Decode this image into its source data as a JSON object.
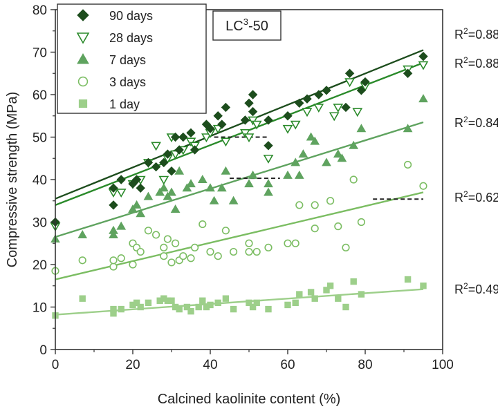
{
  "chart_data": {
    "type": "scatter",
    "xlabel": "Calcined kaolinite content (%)",
    "ylabel": "Compressive strength (MPa)",
    "xlim": [
      0,
      100
    ],
    "ylim": [
      0,
      80
    ],
    "xticks": [
      0,
      20,
      40,
      60,
      80,
      100
    ],
    "yticks": [
      0,
      10,
      20,
      30,
      40,
      50,
      60,
      70,
      80
    ],
    "annotation_box": {
      "main": "LC",
      "sup": "3",
      "rest": "-50"
    },
    "legend_position": "top-left",
    "series": [
      {
        "name": "90 days",
        "marker": "diamond-filled",
        "color": "#1d4d1d",
        "fit": {
          "x": [
            0,
            95
          ],
          "y": [
            35.5,
            70.5
          ]
        },
        "r2_label": "0.88",
        "points": [
          [
            0,
            30
          ],
          [
            15,
            38
          ],
          [
            15,
            34
          ],
          [
            17,
            40
          ],
          [
            20,
            39
          ],
          [
            21,
            40
          ],
          [
            22,
            38
          ],
          [
            24,
            44
          ],
          [
            26,
            43
          ],
          [
            28,
            44
          ],
          [
            29,
            46
          ],
          [
            30,
            42
          ],
          [
            31,
            50
          ],
          [
            32,
            47
          ],
          [
            33,
            50
          ],
          [
            35,
            51
          ],
          [
            36,
            47
          ],
          [
            39,
            53
          ],
          [
            40,
            52
          ],
          [
            42,
            55
          ],
          [
            43,
            53
          ],
          [
            44,
            57
          ],
          [
            49,
            54
          ],
          [
            50,
            58
          ],
          [
            51,
            60
          ],
          [
            51,
            56
          ],
          [
            55,
            48
          ],
          [
            55,
            54
          ],
          [
            60,
            55
          ],
          [
            63,
            58
          ],
          [
            65,
            59
          ],
          [
            68,
            60
          ],
          [
            70,
            61
          ],
          [
            75,
            57
          ],
          [
            76,
            65
          ],
          [
            79,
            61
          ],
          [
            80,
            63
          ],
          [
            91,
            65
          ],
          [
            95,
            69
          ]
        ]
      },
      {
        "name": "28 days",
        "marker": "triangle-down-open",
        "color": "#2a8a2a",
        "fit": {
          "x": [
            0,
            95
          ],
          "y": [
            34,
            67.5
          ]
        },
        "r2_label": "0.88",
        "points": [
          [
            0,
            29
          ],
          [
            15,
            37
          ],
          [
            17,
            37
          ],
          [
            20,
            39
          ],
          [
            22,
            40
          ],
          [
            24,
            44
          ],
          [
            26,
            48
          ],
          [
            28,
            40
          ],
          [
            29,
            45
          ],
          [
            30,
            50
          ],
          [
            31,
            46
          ],
          [
            33,
            47
          ],
          [
            35,
            49
          ],
          [
            36,
            48
          ],
          [
            39,
            50
          ],
          [
            40,
            51
          ],
          [
            42,
            52
          ],
          [
            44,
            49
          ],
          [
            49,
            51
          ],
          [
            50,
            50
          ],
          [
            51,
            54
          ],
          [
            52,
            53
          ],
          [
            55,
            45
          ],
          [
            60,
            52
          ],
          [
            62,
            53
          ],
          [
            65,
            56
          ],
          [
            68,
            57
          ],
          [
            72,
            55
          ],
          [
            73,
            57
          ],
          [
            76,
            63
          ],
          [
            78,
            56
          ],
          [
            80,
            62
          ],
          [
            91,
            66
          ],
          [
            95,
            67
          ]
        ]
      },
      {
        "name": "7 days",
        "marker": "triangle-up-filled",
        "color": "#5fa35f",
        "fit": {
          "x": [
            0,
            95
          ],
          "y": [
            26.5,
            53.5
          ]
        },
        "r2_label": "0.84",
        "points": [
          [
            0,
            26
          ],
          [
            7,
            27
          ],
          [
            15,
            27
          ],
          [
            15,
            28
          ],
          [
            17,
            29
          ],
          [
            20,
            33
          ],
          [
            21,
            34
          ],
          [
            22,
            32
          ],
          [
            24,
            36
          ],
          [
            27,
            37
          ],
          [
            28,
            38
          ],
          [
            29,
            36
          ],
          [
            30,
            37
          ],
          [
            31,
            33
          ],
          [
            32,
            42
          ],
          [
            34,
            38
          ],
          [
            35,
            39
          ],
          [
            38,
            40
          ],
          [
            40,
            38
          ],
          [
            41,
            35
          ],
          [
            43,
            38
          ],
          [
            44,
            42
          ],
          [
            46,
            35
          ],
          [
            50,
            39
          ],
          [
            51,
            41
          ],
          [
            55,
            39
          ],
          [
            55,
            37
          ],
          [
            60,
            41
          ],
          [
            62,
            44
          ],
          [
            63,
            41
          ],
          [
            64,
            46
          ],
          [
            66,
            50
          ],
          [
            67,
            49
          ],
          [
            70,
            44
          ],
          [
            73,
            46
          ],
          [
            74,
            45
          ],
          [
            77,
            48
          ],
          [
            79,
            52
          ],
          [
            91,
            52
          ],
          [
            95,
            59
          ]
        ]
      },
      {
        "name": "3 days",
        "marker": "circle-open",
        "color": "#7bbd62",
        "fit": {
          "x": [
            0,
            95
          ],
          "y": [
            16.5,
            37
          ]
        },
        "r2_label": "0.62",
        "points": [
          [
            0,
            18.5
          ],
          [
            7,
            21
          ],
          [
            15,
            19.5
          ],
          [
            15,
            21
          ],
          [
            17,
            21.5
          ],
          [
            20,
            20
          ],
          [
            20,
            25
          ],
          [
            21,
            24
          ],
          [
            22,
            23
          ],
          [
            24,
            28
          ],
          [
            26,
            27
          ],
          [
            28,
            22
          ],
          [
            28,
            24
          ],
          [
            29,
            26
          ],
          [
            30,
            20.5
          ],
          [
            31,
            25
          ],
          [
            32,
            21
          ],
          [
            33,
            22
          ],
          [
            35,
            21.5
          ],
          [
            36,
            24
          ],
          [
            38,
            29.5
          ],
          [
            40,
            23
          ],
          [
            42,
            22
          ],
          [
            44,
            28
          ],
          [
            46,
            23
          ],
          [
            50,
            25
          ],
          [
            50,
            23
          ],
          [
            52,
            23
          ],
          [
            55,
            24
          ],
          [
            60,
            25
          ],
          [
            62,
            25
          ],
          [
            63,
            34
          ],
          [
            67,
            28.5
          ],
          [
            67,
            34
          ],
          [
            71,
            35
          ],
          [
            73,
            29
          ],
          [
            75,
            24
          ],
          [
            77,
            40
          ],
          [
            79,
            30
          ],
          [
            91,
            43.5
          ],
          [
            95,
            38.5
          ]
        ]
      },
      {
        "name": "1 day",
        "marker": "square-filled",
        "color": "#9dcf8a",
        "fit": {
          "x": [
            0,
            95
          ],
          "y": [
            8.2,
            14.2
          ]
        },
        "r2_label": "0.49",
        "points": [
          [
            0,
            8
          ],
          [
            7,
            12
          ],
          [
            15,
            8.5
          ],
          [
            15,
            9.5
          ],
          [
            17,
            9.5
          ],
          [
            20,
            10.5
          ],
          [
            21,
            11
          ],
          [
            22,
            10
          ],
          [
            24,
            11
          ],
          [
            27,
            11.5
          ],
          [
            28,
            12
          ],
          [
            29,
            11.5
          ],
          [
            30,
            11.5
          ],
          [
            31,
            10
          ],
          [
            32,
            9.5
          ],
          [
            34,
            10
          ],
          [
            35,
            9
          ],
          [
            37,
            10
          ],
          [
            38,
            11.5
          ],
          [
            39,
            10
          ],
          [
            40,
            10.5
          ],
          [
            42,
            11
          ],
          [
            44,
            12
          ],
          [
            46,
            9.5
          ],
          [
            50,
            11
          ],
          [
            51,
            10
          ],
          [
            52,
            11
          ],
          [
            55,
            9.5
          ],
          [
            60,
            10.5
          ],
          [
            62,
            11
          ],
          [
            63,
            13
          ],
          [
            66,
            13.5
          ],
          [
            67,
            12
          ],
          [
            70,
            14
          ],
          [
            71,
            15
          ],
          [
            73,
            12
          ],
          [
            75,
            10
          ],
          [
            77,
            16
          ],
          [
            79,
            13
          ],
          [
            91,
            16.5
          ],
          [
            95,
            15
          ]
        ]
      }
    ],
    "dashed_lines": [
      {
        "x": [
          41,
          55
        ],
        "y": [
          50,
          50
        ]
      },
      {
        "x": [
          45,
          58
        ],
        "y": [
          40.3,
          40.3
        ]
      },
      {
        "x": [
          82,
          95
        ],
        "y": [
          35.4,
          35.4
        ]
      }
    ],
    "r2_prefix": "R",
    "r2_sup": "2",
    "r2_sep": "="
  }
}
